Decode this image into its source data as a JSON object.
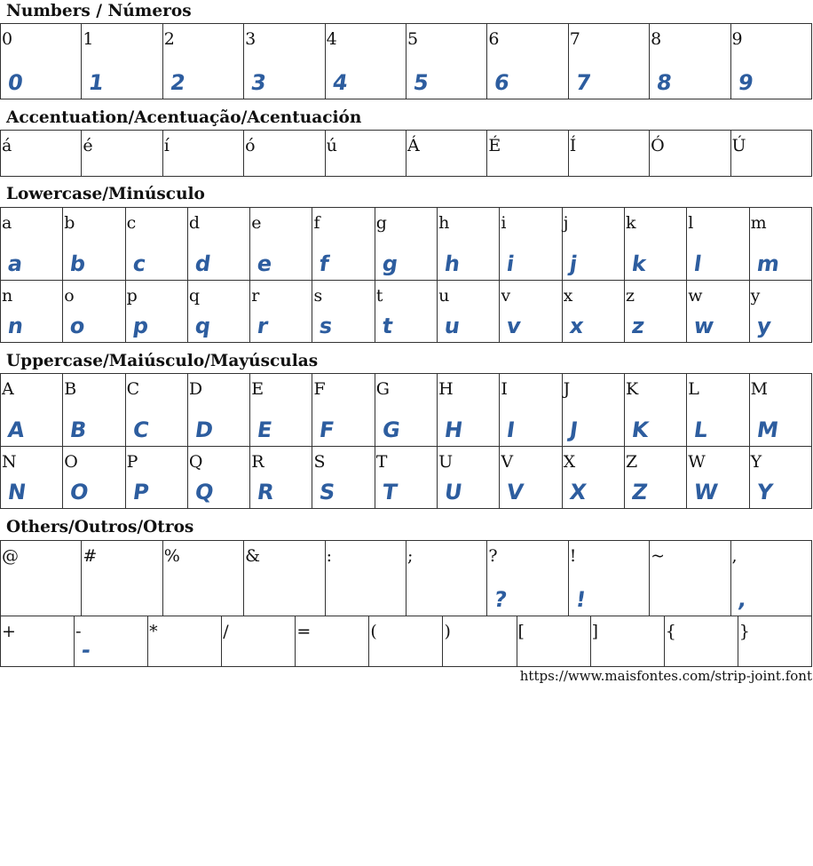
{
  "glyph_color": "#2d5d9f",
  "sections": [
    {
      "title": "Numbers / Números",
      "rows": [
        {
          "height": 85,
          "cells": [
            {
              "c": "0",
              "g": true
            },
            {
              "c": "1",
              "g": true
            },
            {
              "c": "2",
              "g": true
            },
            {
              "c": "3",
              "g": true
            },
            {
              "c": "4",
              "g": true
            },
            {
              "c": "5",
              "g": true
            },
            {
              "c": "6",
              "g": true
            },
            {
              "c": "7",
              "g": true
            },
            {
              "c": "8",
              "g": true
            },
            {
              "c": "9",
              "g": true
            }
          ]
        }
      ]
    },
    {
      "title": "Accentuation/Acentuação/Acentuación",
      "rows": [
        {
          "height": 52,
          "cells": [
            {
              "c": "á"
            },
            {
              "c": "é"
            },
            {
              "c": "í"
            },
            {
              "c": "ó"
            },
            {
              "c": "ú"
            },
            {
              "c": "Á"
            },
            {
              "c": "É"
            },
            {
              "c": "Í"
            },
            {
              "c": "Ó"
            },
            {
              "c": "Ú"
            }
          ]
        }
      ]
    },
    {
      "title": "Lowercase/Minúsculo",
      "rows": [
        {
          "height": 82,
          "cells": [
            {
              "c": "a",
              "g": true
            },
            {
              "c": "b",
              "g": true
            },
            {
              "c": "c",
              "g": true
            },
            {
              "c": "d",
              "g": true
            },
            {
              "c": "e",
              "g": true
            },
            {
              "c": "f",
              "g": true
            },
            {
              "c": "g",
              "g": true
            },
            {
              "c": "h",
              "g": true
            },
            {
              "c": "i",
              "g": true
            },
            {
              "c": "j",
              "g": true
            },
            {
              "c": "k",
              "g": true
            },
            {
              "c": "l",
              "g": true
            },
            {
              "c": "m",
              "g": true
            }
          ]
        },
        {
          "height": 70,
          "cells": [
            {
              "c": "n",
              "g": true
            },
            {
              "c": "o",
              "g": true
            },
            {
              "c": "p",
              "g": true
            },
            {
              "c": "q",
              "g": true
            },
            {
              "c": "r",
              "g": true
            },
            {
              "c": "s",
              "g": true
            },
            {
              "c": "t",
              "g": true
            },
            {
              "c": "u",
              "g": true
            },
            {
              "c": "v",
              "g": true
            },
            {
              "c": "x",
              "g": true
            },
            {
              "c": "z",
              "g": true
            },
            {
              "c": "w",
              "g": true
            },
            {
              "c": "y",
              "g": true
            }
          ]
        }
      ]
    },
    {
      "title": "Uppercase/Maiúsculo/Mayúsculas",
      "rows": [
        {
          "height": 82,
          "cells": [
            {
              "c": "A",
              "g": true
            },
            {
              "c": "B",
              "g": true
            },
            {
              "c": "C",
              "g": true
            },
            {
              "c": "D",
              "g": true
            },
            {
              "c": "E",
              "g": true
            },
            {
              "c": "F",
              "g": true
            },
            {
              "c": "G",
              "g": true
            },
            {
              "c": "H",
              "g": true
            },
            {
              "c": "I",
              "g": true
            },
            {
              "c": "J",
              "g": true
            },
            {
              "c": "K",
              "g": true
            },
            {
              "c": "L",
              "g": true
            },
            {
              "c": "M",
              "g": true
            }
          ]
        },
        {
          "height": 70,
          "cells": [
            {
              "c": "N",
              "g": true
            },
            {
              "c": "O",
              "g": true
            },
            {
              "c": "P",
              "g": true
            },
            {
              "c": "Q",
              "g": true
            },
            {
              "c": "R",
              "g": true
            },
            {
              "c": "S",
              "g": true
            },
            {
              "c": "T",
              "g": true
            },
            {
              "c": "U",
              "g": true
            },
            {
              "c": "V",
              "g": true
            },
            {
              "c": "X",
              "g": true
            },
            {
              "c": "Z",
              "g": true
            },
            {
              "c": "W",
              "g": true
            },
            {
              "c": "Y",
              "g": true
            }
          ]
        }
      ]
    },
    {
      "title": "Others/Outros/Otros",
      "rows": [
        {
          "height": 85,
          "cells": [
            {
              "c": "@"
            },
            {
              "c": "#"
            },
            {
              "c": "%"
            },
            {
              "c": "&"
            },
            {
              "c": ":"
            },
            {
              "c": ";"
            },
            {
              "c": "?",
              "g": true
            },
            {
              "c": "!",
              "g": true
            },
            {
              "c": "~"
            },
            {
              "c": ",",
              "g": true
            }
          ]
        },
        {
          "height": 57,
          "cells": [
            {
              "c": "+"
            },
            {
              "c": "-",
              "g": true
            },
            {
              "c": "*"
            },
            {
              "c": "/"
            },
            {
              "c": "="
            },
            {
              "c": "("
            },
            {
              "c": ")"
            },
            {
              "c": "["
            },
            {
              "c": "]"
            },
            {
              "c": "{"
            },
            {
              "c": "}"
            }
          ]
        }
      ]
    }
  ],
  "footer_url": "https://www.maisfontes.com/strip-joint.font"
}
